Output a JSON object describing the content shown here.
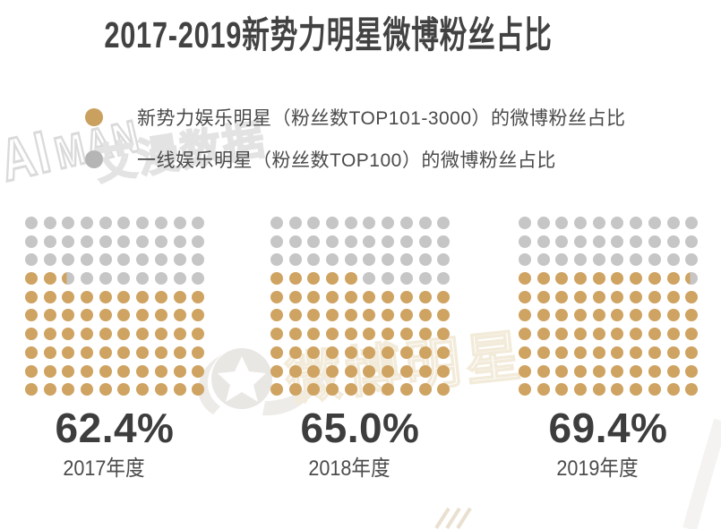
{
  "title": "2017-2019新势力明星微博粉丝占比",
  "colors": {
    "gold": "#cfa361",
    "gray": "#c6c6c6",
    "legend_gold": "#c9a05e",
    "legend_gray": "#b5b5b5",
    "title_text": "#424242",
    "percent_text": "#3d3d3d",
    "year_text": "#4c4c4c"
  },
  "legend": [
    {
      "color": "gold",
      "label": "新势力娱乐明星（粉丝数TOP101-3000）的微博粉丝占比"
    },
    {
      "color": "gray",
      "label": "一线娱乐明星（粉丝数TOP100）的微博粉丝占比"
    }
  ],
  "chart_data": {
    "type": "waffle",
    "grid": {
      "rows": 10,
      "cols": 10,
      "percent_per_dot": 1
    },
    "categories": [
      "2017年度",
      "2018年度",
      "2019年度"
    ],
    "series": [
      {
        "name": "新势力娱乐明星（粉丝数TOP101-3000）的微博粉丝占比",
        "values": [
          62.4,
          65.0,
          69.4
        ]
      },
      {
        "name": "一线娱乐明星（粉丝数TOP100）的微博粉丝占比",
        "values": [
          37.6,
          35.0,
          30.6
        ]
      }
    ],
    "value_labels": [
      "62.4%",
      "65.0%",
      "69.4%"
    ],
    "legend_position": "top-left",
    "fill_direction": "bottom-up, left-to-right in partial row"
  },
  "watermarks": {
    "logo_text": "AIMAN",
    "logo_top": "AI",
    "logo_bottom": "MAN",
    "brand_text": "艾漫数据",
    "weibo_text": "微博明星"
  }
}
